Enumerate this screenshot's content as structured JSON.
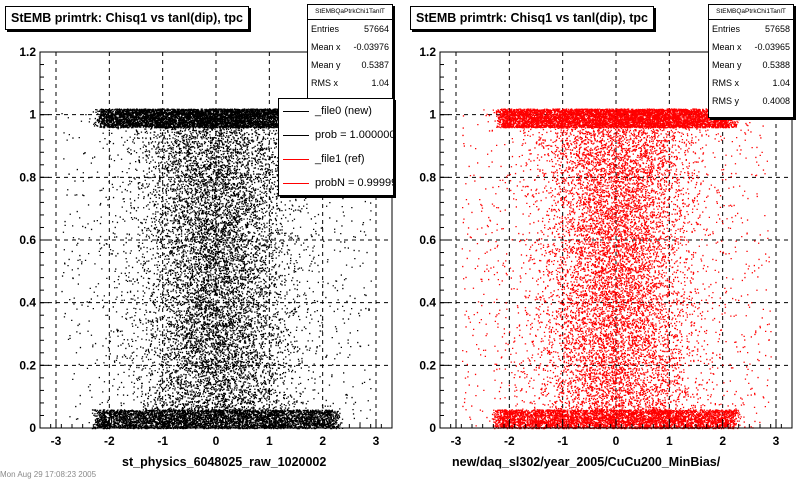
{
  "page": {
    "footer_text": "Mon Aug 29 17:08:23 2005"
  },
  "chart_data": [
    {
      "type": "scatter",
      "title": "StEMB primtrk: Chisq1 vs tanl(dip), tpc",
      "xlabel": "st_physics_6048025_raw_1020002",
      "ylabel": "",
      "xlim": [
        -3.3,
        3.3
      ],
      "ylim": [
        0,
        1.2
      ],
      "xticks": [
        -3,
        -2,
        -1,
        0,
        1,
        2,
        3
      ],
      "yticks": [
        0,
        0.2,
        0.4,
        0.6,
        0.8,
        1,
        1.2
      ],
      "grid": "dashed",
      "marker_color": "#000000",
      "stats": {
        "name": "StEMBQaPtrkChi1TanlT",
        "entries_label": "Entries",
        "entries": "57664",
        "meanx_label": "Mean x",
        "meanx": "-0.03976",
        "meany_label": "Mean y",
        "meany": "0.5387",
        "rmsx_label": "RMS x",
        "rmsx": "1.04"
      },
      "legend": {
        "placement": "top-right",
        "entries": [
          {
            "label": "_file0 (new)",
            "color": "#000000"
          },
          {
            "label": "prob = 1.000000",
            "color": "#000000"
          },
          {
            "label": "_file1 (ref)",
            "color": "#ff0000"
          },
          {
            "label": "probN = 0.999990",
            "color": "#ff0000"
          }
        ]
      }
    },
    {
      "type": "scatter",
      "title": "StEMB primtrk: Chisq1 vs tanl(dip), tpc",
      "xlabel": "new/daq_sl302/year_2005/CuCu200_MinBias/",
      "ylabel": "",
      "xlim": [
        -3.3,
        3.3
      ],
      "ylim": [
        0,
        1.2
      ],
      "xticks": [
        -3,
        -2,
        -1,
        0,
        1,
        2,
        3
      ],
      "yticks": [
        0,
        0.2,
        0.4,
        0.6,
        0.8,
        1,
        1.2
      ],
      "grid": "dashed",
      "marker_color": "#ff0000",
      "stats": {
        "name": "StEMBQaPtrkChi1TanlT",
        "entries_label": "Entries",
        "entries": "57658",
        "meanx_label": "Mean x",
        "meanx": "-0.03965",
        "meany_label": "Mean y",
        "meany": "0.5388",
        "rmsx_label": "RMS x",
        "rmsx": "1.04",
        "rmsy_label": "RMS y",
        "rmsy": "0.4008"
      }
    }
  ]
}
